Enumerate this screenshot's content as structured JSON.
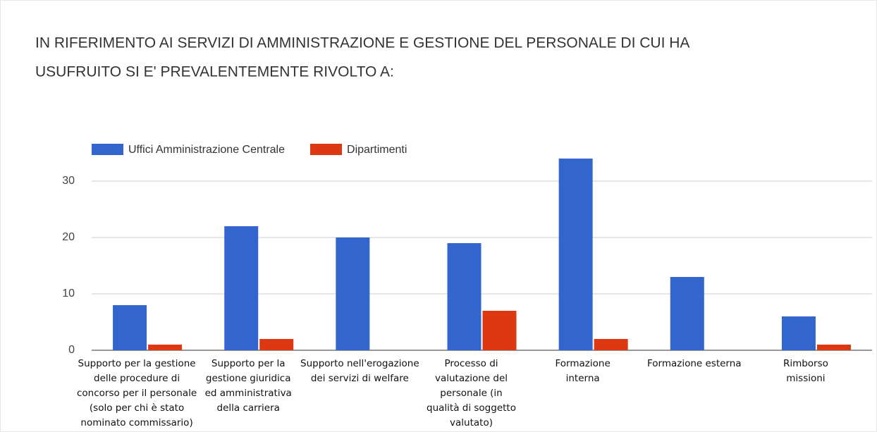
{
  "chart_data": {
    "type": "bar",
    "title": [
      "IN RIFERIMENTO AI SERVIZI DI AMMINISTRAZIONE E GESTIONE DEL PERSONALE DI CUI HA",
      "USUFRUITO SI E' PREVALENTEMENTE RIVOLTO A:"
    ],
    "categories": [
      [
        "Supporto per la gestione",
        "delle procedure di",
        "concorso per il personale",
        "(solo per chi è stato",
        "nominato commissario)"
      ],
      [
        "Supporto per la",
        "gestione giuridica",
        "ed amministrativa",
        "della carriera"
      ],
      [
        "Supporto nell'erogazione",
        "dei servizi di welfare"
      ],
      [
        "Processo di",
        "valutazione del",
        "personale (in",
        "qualità di soggetto",
        "valutato)"
      ],
      [
        "Formazione",
        "interna"
      ],
      [
        "Formazione esterna"
      ],
      [
        "Rimborso",
        "missioni"
      ]
    ],
    "series": [
      {
        "name": "Uffici Amministrazione Centrale",
        "color": "#3366cc",
        "values": [
          8,
          22,
          20,
          19,
          34,
          13,
          6
        ]
      },
      {
        "name": "Dipartimenti",
        "color": "#dc3912",
        "values": [
          1,
          2,
          0,
          7,
          2,
          0,
          1
        ]
      }
    ],
    "ylim": [
      0,
      35
    ],
    "yticks": [
      0,
      10,
      20,
      30
    ],
    "grid": true
  }
}
